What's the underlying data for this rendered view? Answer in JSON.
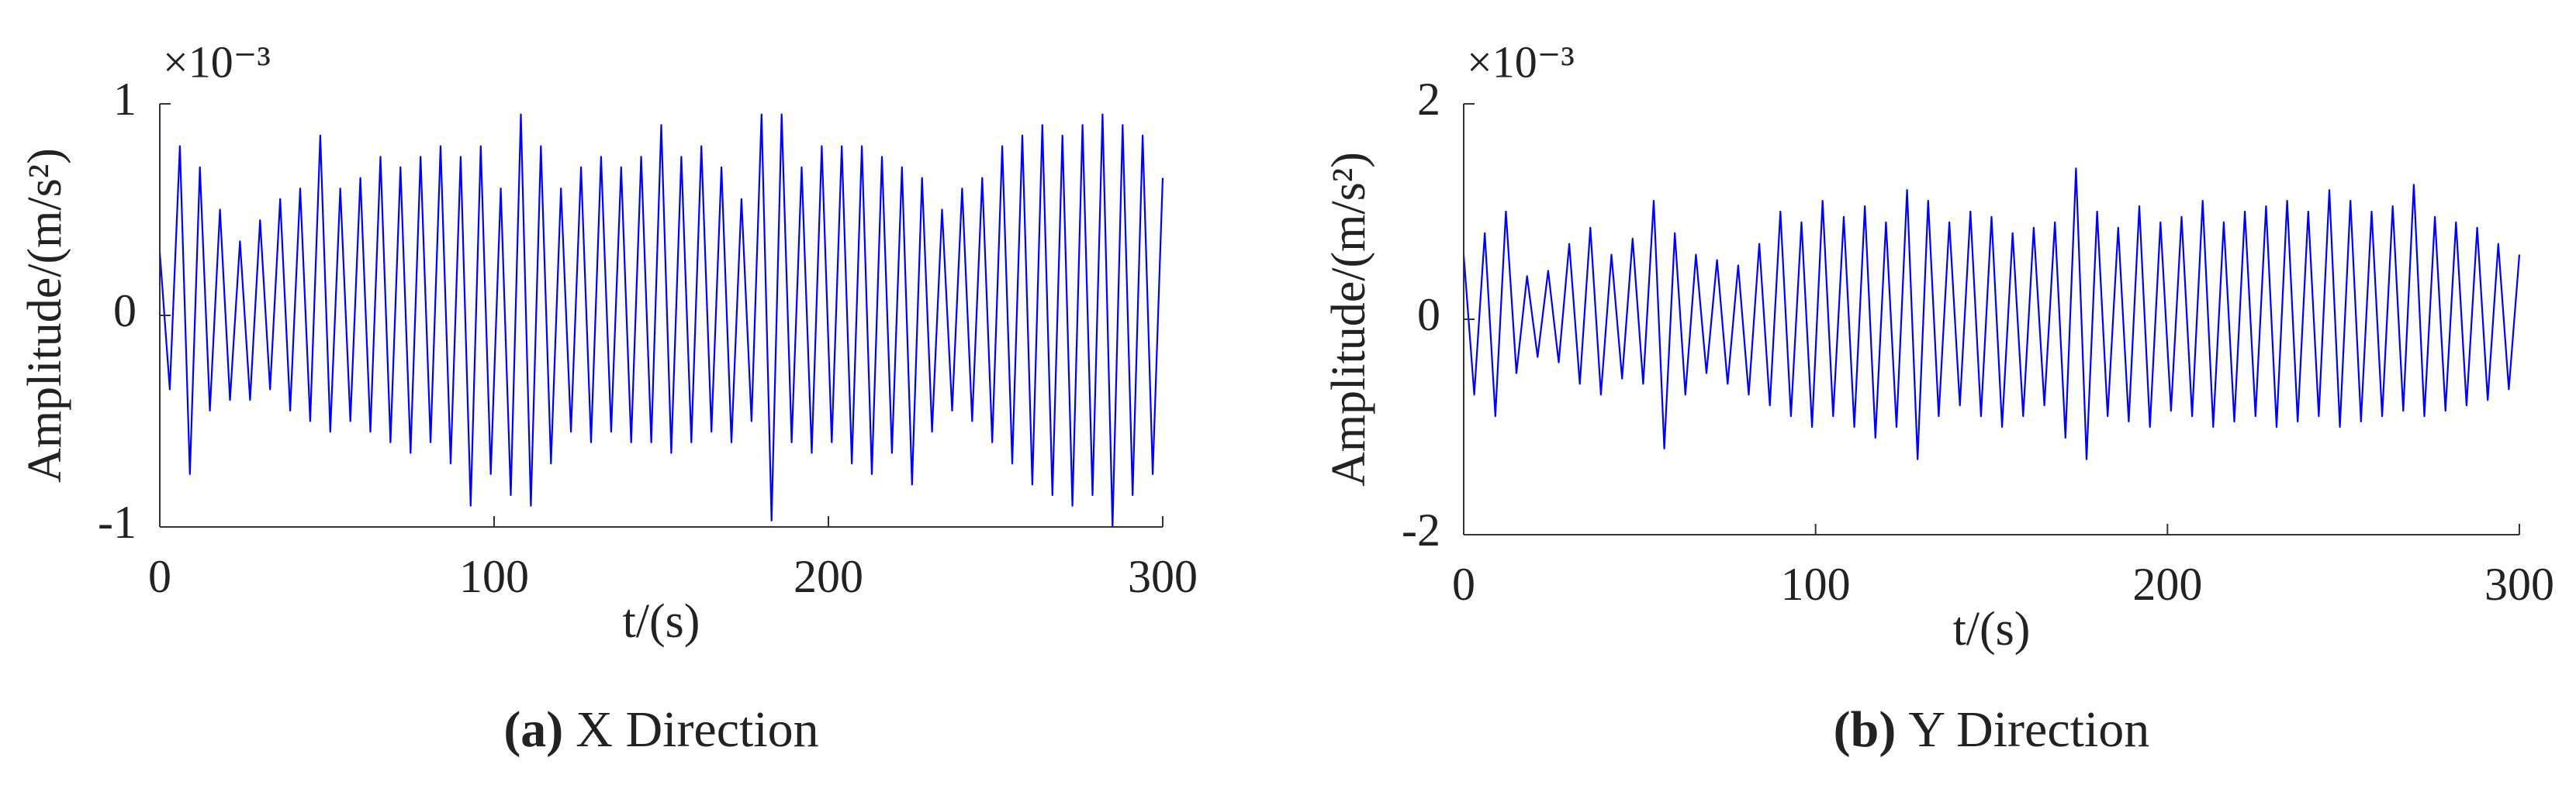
{
  "chart_data": [
    {
      "type": "line",
      "color": "#0000ff",
      "y_label": "Amplitude/(m/s²)",
      "x_label": "t/(s)",
      "y_multiplier": "×10⁻³",
      "caption_tag": "(a)",
      "caption": "X Direction",
      "xlim": [
        0,
        300
      ],
      "xticks": [
        0,
        100,
        200,
        300
      ],
      "ylim": [
        -1,
        1
      ],
      "yticks": [
        -1,
        0,
        1
      ],
      "x": [
        0,
        3,
        6,
        9,
        12,
        15,
        18,
        21,
        24,
        27,
        30,
        33,
        36,
        39,
        42,
        45,
        48,
        51,
        54,
        57,
        60,
        63,
        66,
        69,
        72,
        75,
        78,
        81,
        84,
        87,
        90,
        93,
        96,
        99,
        102,
        105,
        108,
        111,
        114,
        117,
        120,
        123,
        126,
        129,
        132,
        135,
        138,
        141,
        144,
        147,
        150,
        153,
        156,
        159,
        162,
        165,
        168,
        171,
        174,
        177,
        180,
        183,
        186,
        189,
        192,
        195,
        198,
        201,
        204,
        207,
        210,
        213,
        216,
        219,
        222,
        225,
        228,
        231,
        234,
        237,
        240,
        243,
        246,
        249,
        252,
        255,
        258,
        261,
        264,
        267,
        270,
        273,
        276,
        279,
        282,
        285,
        288,
        291,
        294,
        297,
        300
      ],
      "values": [
        0.3,
        -0.35,
        0.8,
        -0.75,
        0.7,
        -0.45,
        0.5,
        -0.4,
        0.35,
        -0.4,
        0.45,
        -0.35,
        0.55,
        -0.45,
        0.6,
        -0.5,
        0.85,
        -0.55,
        0.6,
        -0.5,
        0.65,
        -0.55,
        0.75,
        -0.6,
        0.7,
        -0.65,
        0.75,
        -0.6,
        0.8,
        -0.7,
        0.75,
        -0.9,
        0.8,
        -0.75,
        0.6,
        -0.85,
        0.95,
        -0.9,
        0.8,
        -0.7,
        0.6,
        -0.55,
        0.7,
        -0.6,
        0.75,
        -0.55,
        0.7,
        -0.6,
        0.75,
        -0.6,
        0.9,
        -0.65,
        0.75,
        -0.6,
        0.8,
        -0.55,
        0.7,
        -0.6,
        0.55,
        -0.5,
        0.95,
        -0.97,
        0.95,
        -0.6,
        0.7,
        -0.65,
        0.8,
        -0.6,
        0.8,
        -0.7,
        0.8,
        -0.75,
        0.75,
        -0.65,
        0.7,
        -0.8,
        0.65,
        -0.55,
        0.5,
        -0.45,
        0.6,
        -0.5,
        0.65,
        -0.6,
        0.8,
        -0.7,
        0.85,
        -0.8,
        0.9,
        -0.85,
        0.85,
        -0.9,
        0.9,
        -0.85,
        0.95,
        -1.0,
        0.9,
        -0.85,
        0.85,
        -0.75,
        0.65
      ]
    },
    {
      "type": "line",
      "color": "#0000ff",
      "y_label": "Amplitude/(m/s²)",
      "x_label": "t/(s)",
      "y_multiplier": "×10⁻³",
      "caption_tag": "(b)",
      "caption": "Y Direction",
      "xlim": [
        0,
        300
      ],
      "xticks": [
        0,
        100,
        200,
        300
      ],
      "ylim": [
        -2,
        2
      ],
      "yticks": [
        -2,
        0,
        2
      ],
      "x": [
        0,
        3,
        6,
        9,
        12,
        15,
        18,
        21,
        24,
        27,
        30,
        33,
        36,
        39,
        42,
        45,
        48,
        51,
        54,
        57,
        60,
        63,
        66,
        69,
        72,
        75,
        78,
        81,
        84,
        87,
        90,
        93,
        96,
        99,
        102,
        105,
        108,
        111,
        114,
        117,
        120,
        123,
        126,
        129,
        132,
        135,
        138,
        141,
        144,
        147,
        150,
        153,
        156,
        159,
        162,
        165,
        168,
        171,
        174,
        177,
        180,
        183,
        186,
        189,
        192,
        195,
        198,
        201,
        204,
        207,
        210,
        213,
        216,
        219,
        222,
        225,
        228,
        231,
        234,
        237,
        240,
        243,
        246,
        249,
        252,
        255,
        258,
        261,
        264,
        267,
        270,
        273,
        276,
        279,
        282,
        285,
        288,
        291,
        294,
        297,
        300
      ],
      "values": [
        0.6,
        -0.7,
        0.8,
        -0.9,
        1.0,
        -0.5,
        0.4,
        -0.35,
        0.45,
        -0.4,
        0.7,
        -0.6,
        0.85,
        -0.7,
        0.6,
        -0.55,
        0.75,
        -0.6,
        1.1,
        -1.2,
        0.8,
        -0.7,
        0.6,
        -0.5,
        0.55,
        -0.6,
        0.5,
        -0.7,
        0.7,
        -0.8,
        1.0,
        -0.9,
        0.9,
        -1.0,
        1.1,
        -0.9,
        0.95,
        -1.0,
        1.05,
        -1.1,
        0.9,
        -1.0,
        1.2,
        -1.3,
        1.1,
        -0.9,
        0.9,
        -0.8,
        1.0,
        -0.9,
        0.95,
        -1.0,
        0.8,
        -0.9,
        0.85,
        -0.8,
        0.9,
        -1.1,
        1.4,
        -1.3,
        1.0,
        -0.9,
        0.85,
        -0.95,
        1.05,
        -1.0,
        0.9,
        -0.85,
        0.95,
        -0.9,
        1.1,
        -1.0,
        0.9,
        -0.95,
        1.0,
        -0.9,
        1.05,
        -1.0,
        1.1,
        -0.95,
        1.0,
        -0.9,
        1.2,
        -1.0,
        1.1,
        -0.95,
        1.0,
        -0.9,
        1.05,
        -0.85,
        1.25,
        -0.9,
        0.95,
        -0.85,
        0.9,
        -0.8,
        0.85,
        -0.75,
        0.7,
        -0.65,
        0.6
      ]
    }
  ]
}
